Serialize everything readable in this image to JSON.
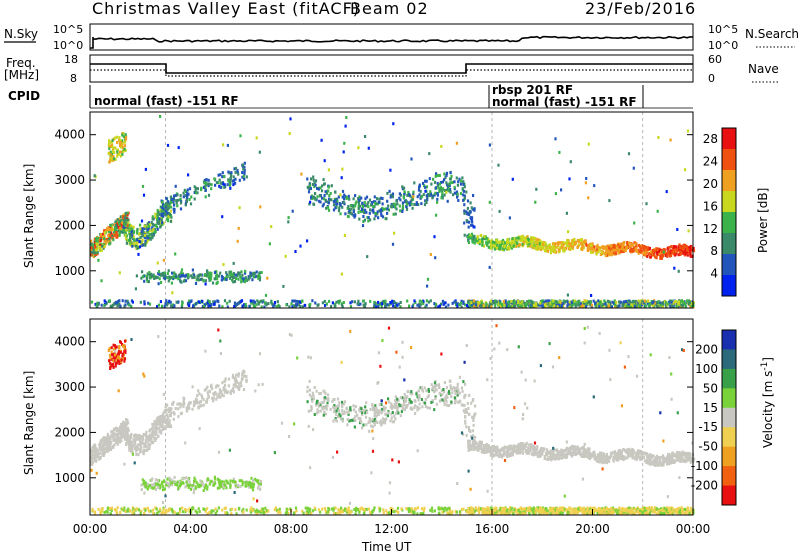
{
  "header": {
    "title": "Christmas Valley East (fitACF)",
    "beam": "Beam 02",
    "date": "23/Feb/2016"
  },
  "panels": {
    "nsky_label": "N.Sky",
    "nsearch_label": "N.Search",
    "noise_ticks": [
      "10^5",
      "10^0"
    ],
    "freq_label": "Freq.",
    "freq_unit": "[MHz]",
    "freq_ticks": [
      "18",
      "8"
    ],
    "nave_label": "Nave",
    "nave_ticks": [
      "60",
      "0"
    ],
    "cpid_label": "CPID",
    "cpid_segments": [
      "normal (fast) -151 RF",
      "rbsp 201 RF",
      "normal (fast) -151 RF"
    ]
  },
  "chart_data": [
    {
      "type": "heatmap",
      "title": "",
      "quantity": "Power",
      "xlabel": "Time UT",
      "ylabel": "Slant Range [km]",
      "x": [
        "00:00",
        "04:00",
        "08:00",
        "12:00",
        "16:00",
        "20:00",
        "00:00"
      ],
      "xlim": [
        0,
        24
      ],
      "ylim": [
        180,
        4500
      ],
      "yticks": [
        1000,
        2000,
        3000,
        4000
      ],
      "colorbar": {
        "label": "Power [dB]",
        "ticks": [
          4,
          8,
          12,
          16,
          20,
          24,
          28
        ],
        "range": [
          0,
          30
        ],
        "colors": [
          "#0022ee",
          "#2255bb",
          "#3a8a6a",
          "#3cb34a",
          "#c8d81e",
          "#f0a020",
          "#f05010",
          "#e81010"
        ]
      }
    },
    {
      "type": "heatmap",
      "title": "",
      "quantity": "Velocity",
      "xlabel": "Time UT",
      "ylabel": "Slant Range [km]",
      "x": [
        "00:00",
        "04:00",
        "08:00",
        "12:00",
        "16:00",
        "20:00",
        "00:00"
      ],
      "xlim": [
        0,
        24
      ],
      "ylim": [
        180,
        4500
      ],
      "yticks": [
        1000,
        2000,
        3000,
        4000
      ],
      "colorbar": {
        "label": "Velocity [m s^-1]",
        "ticks": [
          200,
          100,
          50,
          15,
          -15,
          -50,
          -100,
          -200
        ],
        "colors": [
          "#1a2fb0",
          "#2a6a7a",
          "#39a04a",
          "#7ad23a",
          "#c8c8c0",
          "#f0d050",
          "#f0a020",
          "#f06010",
          "#e81010"
        ]
      }
    }
  ],
  "colors": {
    "ground_scatter": "#c8c8c0",
    "axis": "#000000",
    "dashed_marker": "#999999"
  }
}
